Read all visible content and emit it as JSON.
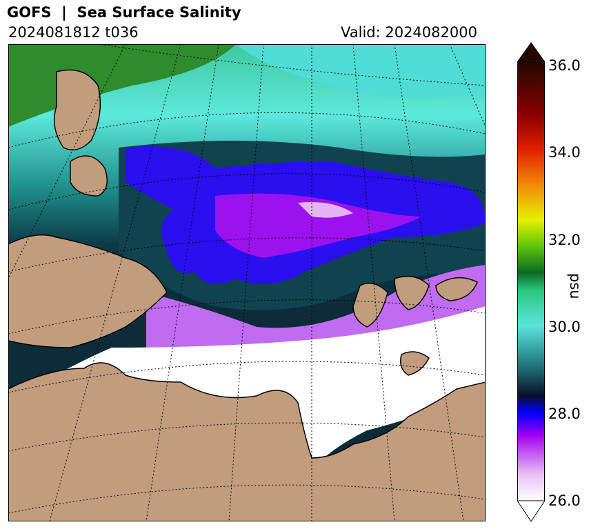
{
  "title": "GOFS  |  Sea Surface Salinity",
  "run": "2024081812 t036",
  "valid": "Valid: 2024082000",
  "colorbar": {
    "label": "psu",
    "ticks": [
      "36.0",
      "34.0",
      "32.0",
      "30.0",
      "28.0",
      "26.0"
    ],
    "min": 26.0,
    "max": 36.0,
    "extend": "both"
  },
  "colors": {
    "land": "#c19d7e",
    "ice_or_fresh": "#ffffff"
  }
}
